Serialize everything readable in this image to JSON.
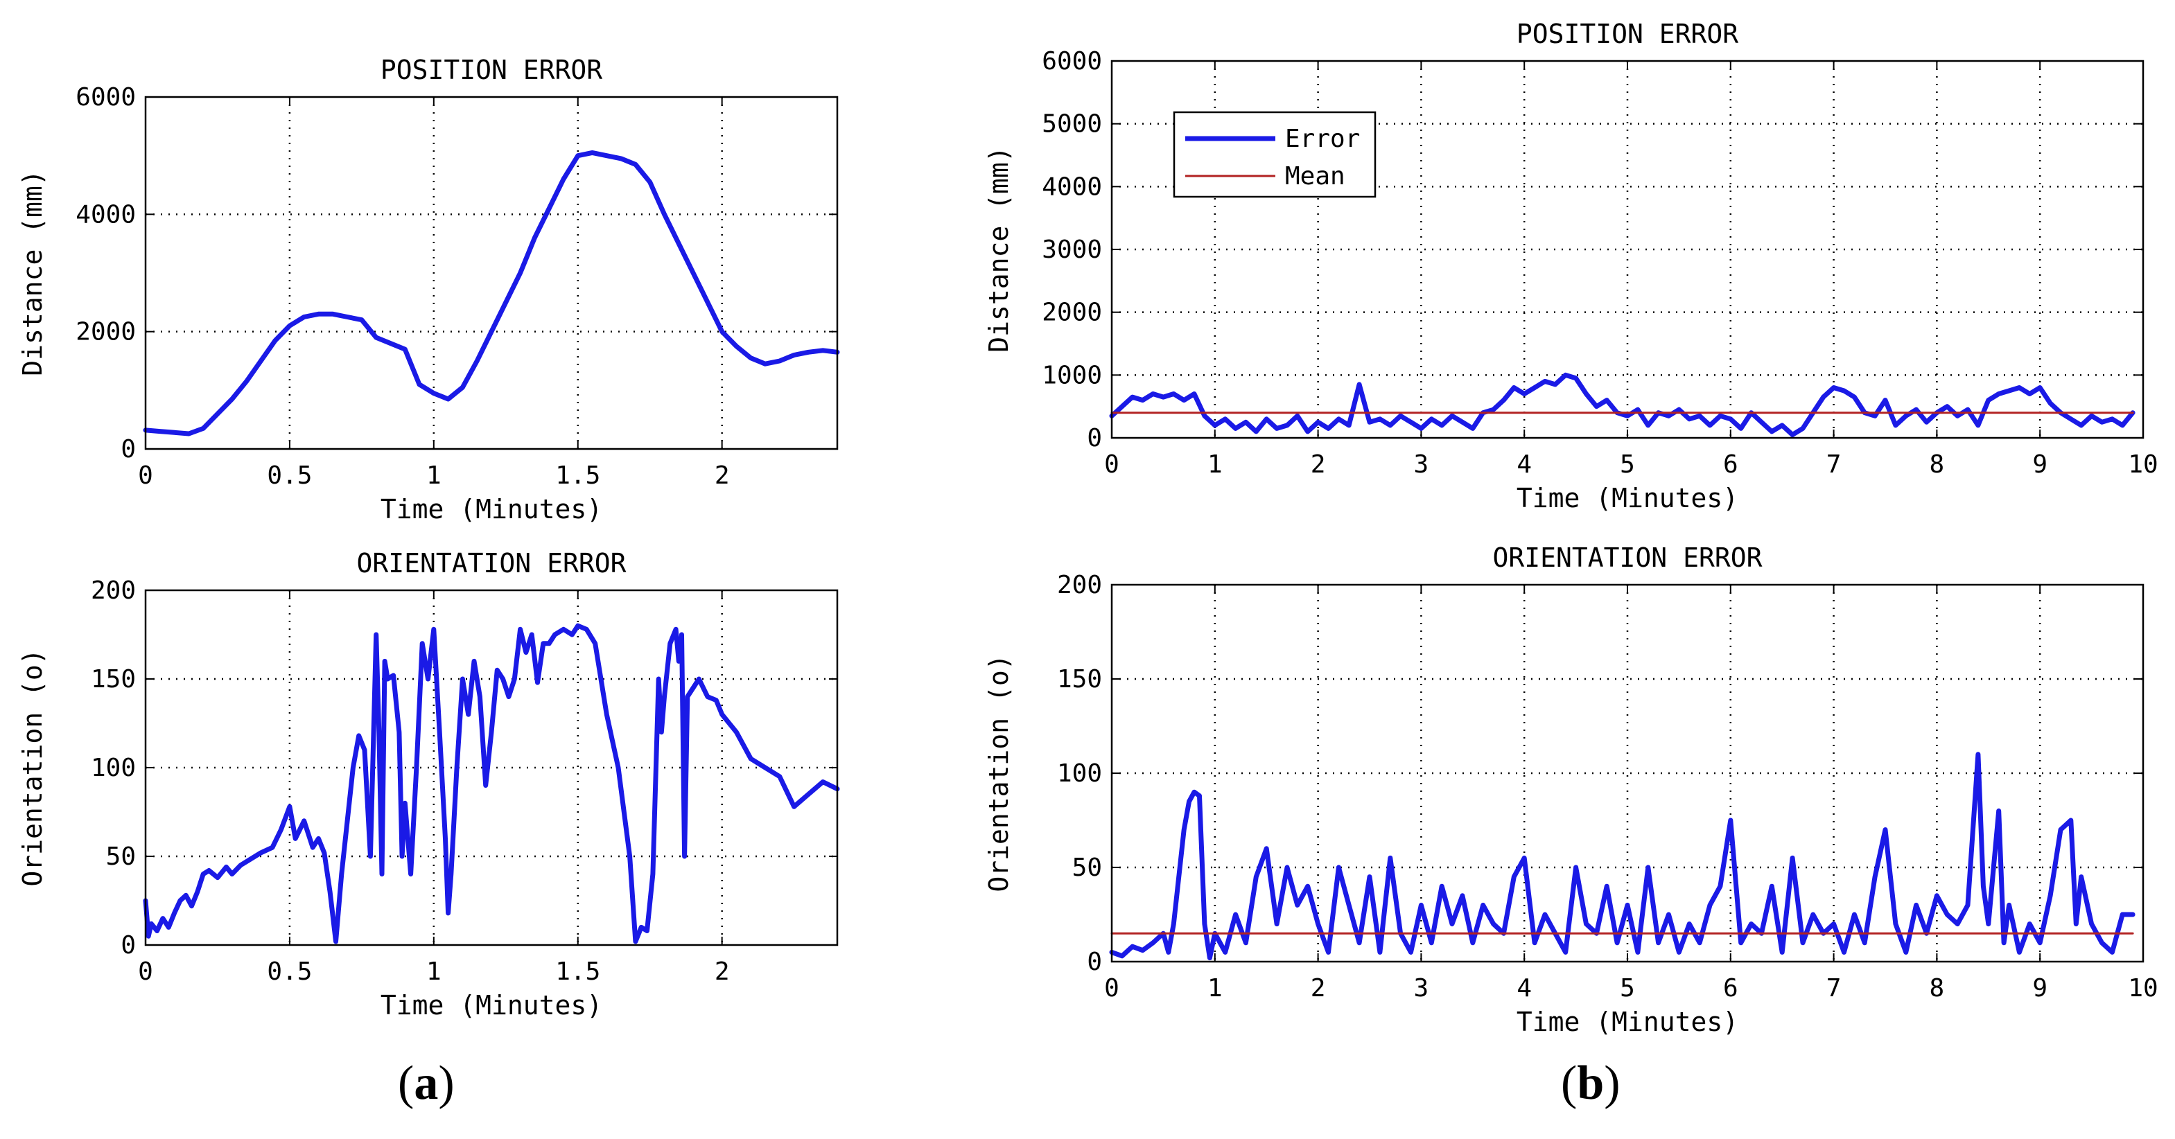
{
  "captions": {
    "a": {
      "open": "(",
      "letter": "a",
      "close": ")"
    },
    "b": {
      "open": "(",
      "letter": "b",
      "close": ")"
    }
  },
  "colors": {
    "error": "#1a1ae6",
    "mean": "#b22222",
    "grid": "#000000",
    "axes": "#000000"
  },
  "chart_data": [
    {
      "id": "a-position",
      "type": "line",
      "title": "POSITION ERROR",
      "xlabel": "Time (Minutes)",
      "ylabel": "Distance (mm)",
      "xlim": [
        0,
        2.4
      ],
      "ylim": [
        0,
        6000
      ],
      "xticks": [
        0,
        0.5,
        1,
        1.5,
        2
      ],
      "xtick_labels": [
        "0",
        "0.5",
        "1",
        "1.5",
        "2"
      ],
      "yticks": [
        0,
        2000,
        4000,
        6000
      ],
      "ytick_labels": [
        "0",
        "2000",
        "4000",
        "6000"
      ],
      "series": [
        {
          "name": "Error",
          "x": [
            0,
            0.05,
            0.1,
            0.15,
            0.2,
            0.25,
            0.3,
            0.35,
            0.4,
            0.45,
            0.5,
            0.55,
            0.6,
            0.65,
            0.7,
            0.75,
            0.8,
            0.85,
            0.9,
            0.95,
            1.0,
            1.05,
            1.1,
            1.15,
            1.2,
            1.25,
            1.3,
            1.35,
            1.4,
            1.45,
            1.5,
            1.55,
            1.6,
            1.65,
            1.7,
            1.75,
            1.8,
            1.85,
            1.9,
            1.95,
            2.0,
            2.05,
            2.1,
            2.15,
            2.2,
            2.25,
            2.3,
            2.35,
            2.4
          ],
          "y": [
            320,
            300,
            280,
            260,
            350,
            600,
            850,
            1150,
            1500,
            1850,
            2100,
            2250,
            2300,
            2300,
            2250,
            2200,
            1900,
            1800,
            1700,
            1100,
            950,
            850,
            1050,
            1500,
            2000,
            2500,
            3000,
            3600,
            4100,
            4600,
            5000,
            5050,
            5000,
            4950,
            4850,
            4550,
            4000,
            3500,
            3000,
            2500,
            2000,
            1750,
            1550,
            1450,
            1500,
            1600,
            1650,
            1680,
            1650
          ]
        }
      ]
    },
    {
      "id": "a-orientation",
      "type": "line",
      "title": "ORIENTATION ERROR",
      "xlabel": "Time (Minutes)",
      "ylabel": "Orientation (o)",
      "xlim": [
        0,
        2.4
      ],
      "ylim": [
        0,
        200
      ],
      "xticks": [
        0,
        0.5,
        1,
        1.5,
        2
      ],
      "xtick_labels": [
        "0",
        "0.5",
        "1",
        "1.5",
        "2"
      ],
      "yticks": [
        0,
        50,
        100,
        150,
        200
      ],
      "ytick_labels": [
        "0",
        "50",
        "100",
        "150",
        "200"
      ],
      "series": [
        {
          "name": "Error",
          "x": [
            0,
            0.01,
            0.02,
            0.04,
            0.06,
            0.08,
            0.1,
            0.12,
            0.14,
            0.16,
            0.18,
            0.2,
            0.22,
            0.25,
            0.28,
            0.3,
            0.33,
            0.36,
            0.4,
            0.44,
            0.47,
            0.5,
            0.52,
            0.55,
            0.58,
            0.6,
            0.62,
            0.64,
            0.66,
            0.68,
            0.7,
            0.72,
            0.74,
            0.76,
            0.78,
            0.8,
            0.81,
            0.82,
            0.83,
            0.84,
            0.86,
            0.88,
            0.89,
            0.9,
            0.92,
            0.94,
            0.96,
            0.98,
            1.0,
            1.02,
            1.04,
            1.05,
            1.06,
            1.08,
            1.1,
            1.12,
            1.14,
            1.16,
            1.18,
            1.2,
            1.22,
            1.24,
            1.26,
            1.28,
            1.3,
            1.32,
            1.34,
            1.36,
            1.38,
            1.4,
            1.42,
            1.45,
            1.48,
            1.5,
            1.53,
            1.56,
            1.6,
            1.64,
            1.68,
            1.7,
            1.72,
            1.74,
            1.76,
            1.78,
            1.79,
            1.8,
            1.82,
            1.84,
            1.85,
            1.86,
            1.87,
            1.88,
            1.9,
            1.92,
            1.95,
            1.98,
            2.0,
            2.05,
            2.1,
            2.15,
            2.2,
            2.25,
            2.3,
            2.35,
            2.4
          ],
          "y": [
            25,
            5,
            12,
            8,
            15,
            10,
            18,
            25,
            28,
            22,
            30,
            40,
            42,
            38,
            44,
            40,
            45,
            48,
            52,
            55,
            65,
            78,
            60,
            70,
            55,
            60,
            52,
            30,
            2,
            40,
            70,
            100,
            118,
            110,
            50,
            175,
            120,
            40,
            160,
            150,
            152,
            120,
            50,
            80,
            40,
            100,
            170,
            150,
            178,
            120,
            60,
            18,
            40,
            100,
            150,
            130,
            160,
            140,
            90,
            120,
            155,
            150,
            140,
            150,
            178,
            165,
            175,
            148,
            170,
            170,
            175,
            178,
            175,
            180,
            178,
            170,
            130,
            100,
            50,
            2,
            10,
            8,
            40,
            150,
            120,
            140,
            170,
            178,
            160,
            175,
            50,
            140,
            145,
            150,
            140,
            138,
            130,
            120,
            105,
            100,
            95,
            78,
            85,
            92,
            88
          ]
        }
      ]
    },
    {
      "id": "b-position",
      "type": "line",
      "title": "POSITION ERROR",
      "xlabel": "Time (Minutes)",
      "ylabel": "Distance (mm)",
      "xlim": [
        0,
        10
      ],
      "ylim": [
        0,
        6000
      ],
      "xticks": [
        0,
        1,
        2,
        3,
        4,
        5,
        6,
        7,
        8,
        9,
        10
      ],
      "xtick_labels": [
        "0",
        "1",
        "2",
        "3",
        "4",
        "5",
        "6",
        "7",
        "8",
        "9",
        "10"
      ],
      "yticks": [
        0,
        1000,
        2000,
        3000,
        4000,
        5000,
        6000
      ],
      "ytick_labels": [
        "0",
        "1000",
        "2000",
        "3000",
        "4000",
        "5000",
        "6000"
      ],
      "legend": {
        "entries": [
          "Error",
          "Mean"
        ],
        "location": "upper-left"
      },
      "series": [
        {
          "name": "Error",
          "x": [
            0,
            0.1,
            0.2,
            0.3,
            0.4,
            0.5,
            0.6,
            0.7,
            0.8,
            0.9,
            1.0,
            1.1,
            1.2,
            1.3,
            1.4,
            1.5,
            1.6,
            1.7,
            1.8,
            1.9,
            2.0,
            2.1,
            2.2,
            2.3,
            2.4,
            2.5,
            2.6,
            2.7,
            2.8,
            2.9,
            3.0,
            3.1,
            3.2,
            3.3,
            3.4,
            3.5,
            3.6,
            3.7,
            3.8,
            3.9,
            4.0,
            4.1,
            4.2,
            4.3,
            4.4,
            4.5,
            4.6,
            4.7,
            4.8,
            4.9,
            5.0,
            5.1,
            5.2,
            5.3,
            5.4,
            5.5,
            5.6,
            5.7,
            5.8,
            5.9,
            6.0,
            6.1,
            6.2,
            6.3,
            6.4,
            6.5,
            6.6,
            6.7,
            6.8,
            6.9,
            7.0,
            7.1,
            7.2,
            7.3,
            7.4,
            7.5,
            7.6,
            7.7,
            7.8,
            7.9,
            8.0,
            8.1,
            8.2,
            8.3,
            8.4,
            8.5,
            8.6,
            8.7,
            8.8,
            8.9,
            9.0,
            9.1,
            9.2,
            9.3,
            9.4,
            9.5,
            9.6,
            9.7,
            9.8,
            9.9
          ],
          "y": [
            350,
            500,
            650,
            600,
            700,
            650,
            700,
            600,
            700,
            350,
            200,
            300,
            150,
            250,
            100,
            300,
            150,
            200,
            350,
            100,
            250,
            150,
            300,
            200,
            850,
            250,
            300,
            200,
            350,
            250,
            150,
            300,
            200,
            350,
            250,
            150,
            400,
            450,
            600,
            800,
            700,
            800,
            900,
            850,
            1000,
            950,
            700,
            500,
            600,
            400,
            350,
            450,
            200,
            400,
            350,
            450,
            300,
            350,
            200,
            350,
            300,
            150,
            400,
            250,
            100,
            200,
            50,
            150,
            400,
            650,
            800,
            750,
            650,
            400,
            350,
            600,
            200,
            350,
            450,
            250,
            400,
            500,
            350,
            450,
            200,
            600,
            700,
            750,
            800,
            700,
            800,
            550,
            400,
            300,
            200,
            350,
            250,
            300,
            200,
            400
          ]
        },
        {
          "name": "Mean",
          "x": [
            0,
            9.9
          ],
          "y": [
            400,
            400
          ]
        }
      ]
    },
    {
      "id": "b-orientation",
      "type": "line",
      "title": "ORIENTATION ERROR",
      "xlabel": "Time (Minutes)",
      "ylabel": "Orientation (o)",
      "xlim": [
        0,
        10
      ],
      "ylim": [
        0,
        200
      ],
      "xticks": [
        0,
        1,
        2,
        3,
        4,
        5,
        6,
        7,
        8,
        9,
        10
      ],
      "xtick_labels": [
        "0",
        "1",
        "2",
        "3",
        "4",
        "5",
        "6",
        "7",
        "8",
        "9",
        "10"
      ],
      "yticks": [
        0,
        50,
        100,
        150,
        200
      ],
      "ytick_labels": [
        "0",
        "50",
        "100",
        "150",
        "200"
      ],
      "series": [
        {
          "name": "Error",
          "x": [
            0,
            0.1,
            0.2,
            0.3,
            0.4,
            0.5,
            0.55,
            0.6,
            0.7,
            0.75,
            0.8,
            0.85,
            0.9,
            0.95,
            1.0,
            1.1,
            1.2,
            1.3,
            1.4,
            1.5,
            1.6,
            1.7,
            1.8,
            1.9,
            2.0,
            2.1,
            2.2,
            2.3,
            2.4,
            2.5,
            2.6,
            2.7,
            2.8,
            2.9,
            3.0,
            3.1,
            3.2,
            3.3,
            3.4,
            3.5,
            3.6,
            3.7,
            3.8,
            3.9,
            4.0,
            4.1,
            4.2,
            4.3,
            4.4,
            4.5,
            4.6,
            4.7,
            4.8,
            4.9,
            5.0,
            5.1,
            5.2,
            5.3,
            5.4,
            5.5,
            5.6,
            5.7,
            5.8,
            5.9,
            6.0,
            6.1,
            6.2,
            6.3,
            6.4,
            6.5,
            6.6,
            6.7,
            6.8,
            6.9,
            7.0,
            7.1,
            7.2,
            7.3,
            7.4,
            7.5,
            7.6,
            7.7,
            7.8,
            7.9,
            8.0,
            8.1,
            8.2,
            8.3,
            8.4,
            8.45,
            8.5,
            8.6,
            8.65,
            8.7,
            8.8,
            8.9,
            9.0,
            9.1,
            9.2,
            9.3,
            9.35,
            9.4,
            9.5,
            9.6,
            9.7,
            9.8,
            9.9
          ],
          "y": [
            5,
            3,
            8,
            6,
            10,
            15,
            5,
            20,
            70,
            85,
            90,
            88,
            20,
            2,
            15,
            5,
            25,
            10,
            45,
            60,
            20,
            50,
            30,
            40,
            20,
            5,
            50,
            30,
            10,
            45,
            5,
            55,
            15,
            5,
            30,
            10,
            40,
            20,
            35,
            10,
            30,
            20,
            15,
            45,
            55,
            10,
            25,
            15,
            5,
            50,
            20,
            15,
            40,
            10,
            30,
            5,
            50,
            10,
            25,
            5,
            20,
            10,
            30,
            40,
            75,
            10,
            20,
            15,
            40,
            5,
            55,
            10,
            25,
            15,
            20,
            5,
            25,
            10,
            45,
            70,
            20,
            5,
            30,
            15,
            35,
            25,
            20,
            30,
            110,
            40,
            20,
            80,
            10,
            30,
            5,
            20,
            10,
            35,
            70,
            75,
            20,
            45,
            20,
            10,
            5,
            25,
            25
          ]
        },
        {
          "name": "Mean",
          "x": [
            0,
            9.9
          ],
          "y": [
            15,
            15
          ]
        }
      ]
    }
  ]
}
